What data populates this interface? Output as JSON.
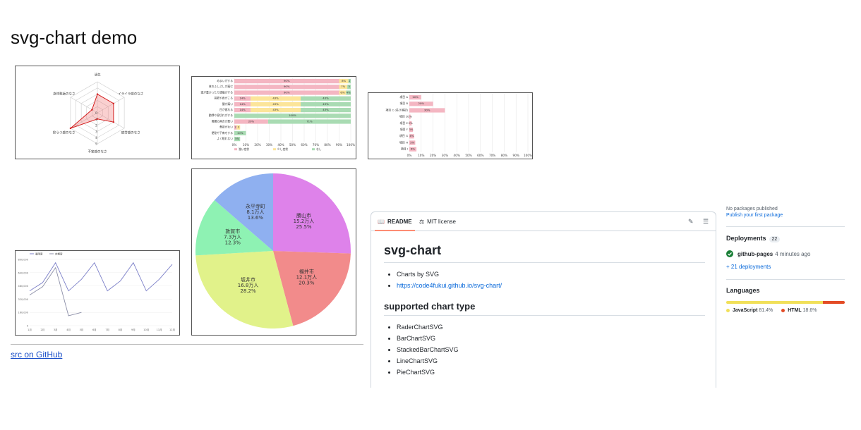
{
  "page": {
    "title": "svg-chart demo",
    "src_link": "src on GitHub"
  },
  "radar": {
    "axes": [
      "活気",
      "イライラ感のなさ",
      "疲労感のなさ",
      "不安感のなさ",
      "抑うつ感のなさ",
      "身体愁訴のなさ"
    ],
    "values": [
      3,
      3,
      3,
      1,
      5,
      1
    ],
    "max": 5,
    "ticks": [
      "0",
      "1",
      "2",
      "3",
      "4",
      "5"
    ]
  },
  "stacked": {
    "rows": [
      "めまいがする",
      "体のふしぶしが痛む",
      "頭が重かったり頭痛がする",
      "首筋や肩がこる",
      "腰が痛い",
      "目が疲れる",
      "動悸や息切れがする",
      "胃腸の具合が悪い",
      "食欲がない",
      "便秘や下痢をする",
      "よく眠れない"
    ],
    "segments": [
      [
        90,
        8,
        2
      ],
      [
        90,
        7,
        3
      ],
      [
        90,
        6,
        4
      ],
      [
        14,
        43,
        43
      ],
      [
        14,
        43,
        43
      ],
      [
        14,
        43,
        43
      ],
      [
        0,
        0,
        100
      ],
      [
        29,
        0,
        71
      ],
      [
        2,
        3,
        0
      ],
      [
        0,
        0,
        10
      ],
      [
        0,
        0,
        5
      ]
    ],
    "labels": [
      [
        "90%",
        "8%",
        "2"
      ],
      [
        "90%",
        "7%",
        "3"
      ],
      [
        "90%",
        "6%",
        "4%"
      ],
      [
        "14%",
        "43%",
        "43%"
      ],
      [
        "14%",
        "43%",
        "43%"
      ],
      [
        "14%",
        "43%",
        "43%"
      ],
      [
        "",
        "",
        "100%"
      ],
      [
        "29%",
        "",
        "71%"
      ],
      [
        "2",
        "3",
        ""
      ],
      [
        "",
        "",
        "10%"
      ],
      [
        "",
        "",
        "5%"
      ]
    ],
    "legend": [
      "強い症状",
      "少し症状",
      "なし"
    ],
    "colors": [
      "#f4b6c2",
      "#fce59a",
      "#a9dbb3"
    ],
    "xticks": [
      "0%",
      "10%",
      "20%",
      "30%",
      "40%",
      "50%",
      "60%",
      "70%",
      "80%",
      "90%",
      "100%"
    ]
  },
  "bar": {
    "rows": [
      "項目 A",
      "項目 B",
      "項目 C (長さ確認)",
      "項目 D",
      "項目 E",
      "項目 F",
      "項目 G",
      "項目 H",
      "項目 I"
    ],
    "values": [
      10,
      20,
      30,
      1,
      2,
      3,
      4,
      5,
      6
    ],
    "labels": [
      "10%",
      "20%",
      "30%",
      "1%",
      "2%",
      "3%",
      "4%",
      "5%",
      "6%"
    ],
    "xticks": [
      "0%",
      "10%",
      "20%",
      "30%",
      "40%",
      "50%",
      "60%",
      "70%",
      "80%",
      "90%",
      "100%"
    ]
  },
  "line": {
    "legend": [
      "乗降客",
      "定期客"
    ],
    "colors": [
      "#7b7fc8",
      "#8c8fa8"
    ],
    "yticks": [
      "800,000",
      "640,000",
      "480,000",
      "320,000",
      "160,000",
      "0"
    ],
    "ymax": 800000,
    "xticks": [
      "1月",
      "2月",
      "3月",
      "4月",
      "5月",
      "6月",
      "7月",
      "8月",
      "9月",
      "10月",
      "11月",
      "12月"
    ],
    "series1": [
      420000,
      520000,
      760000,
      420000,
      560000,
      760000,
      420000,
      540000,
      760000,
      420000,
      560000,
      740000
    ],
    "series2": [
      370000,
      470000,
      700000,
      120000,
      160000
    ]
  },
  "pie": {
    "slices": [
      {
        "name": "勝山市",
        "amount": "15.2万人",
        "pct": "25.5%",
        "value": 25.5,
        "color": "#de82ea"
      },
      {
        "name": "福井市",
        "amount": "12.1万人",
        "pct": "20.3%",
        "value": 20.3,
        "color": "#f28b8b"
      },
      {
        "name": "坂井市",
        "amount": "16.8万人",
        "pct": "28.2%",
        "value": 28.2,
        "color": "#e1f28a"
      },
      {
        "name": "敦賀市",
        "amount": "7.3万人",
        "pct": "12.3%",
        "value": 12.3,
        "color": "#8ef2b3"
      },
      {
        "name": "永平寺町",
        "amount": "8.1万人",
        "pct": "13.6%",
        "value": 13.6,
        "color": "#8fb0f0"
      }
    ]
  },
  "readme": {
    "tab_readme": "README",
    "tab_license": "MIT license",
    "h1": "svg-chart",
    "items": [
      "Charts by SVG",
      "https://code4fukui.github.io/svg-chart/"
    ],
    "h2": "supported chart type",
    "types": [
      "RaderChartSVG",
      "BarChartSVG",
      "StackedBarChartSVG",
      "LineChartSVG",
      "PieChartSVG"
    ]
  },
  "sidebar": {
    "no_packages": "No packages published",
    "publish": "Publish your first package",
    "deployments": "Deployments",
    "deploy_count": "22",
    "deploy_name": "github-pages",
    "deploy_time": "4 minutes ago",
    "more_deploys": "+ 21 deployments",
    "languages": "Languages",
    "langs": [
      {
        "name": "JavaScript",
        "pct": "81.4%",
        "value": 81.4,
        "color": "#f1e05a"
      },
      {
        "name": "HTML",
        "pct": "18.6%",
        "value": 18.6,
        "color": "#e34c26"
      }
    ]
  }
}
